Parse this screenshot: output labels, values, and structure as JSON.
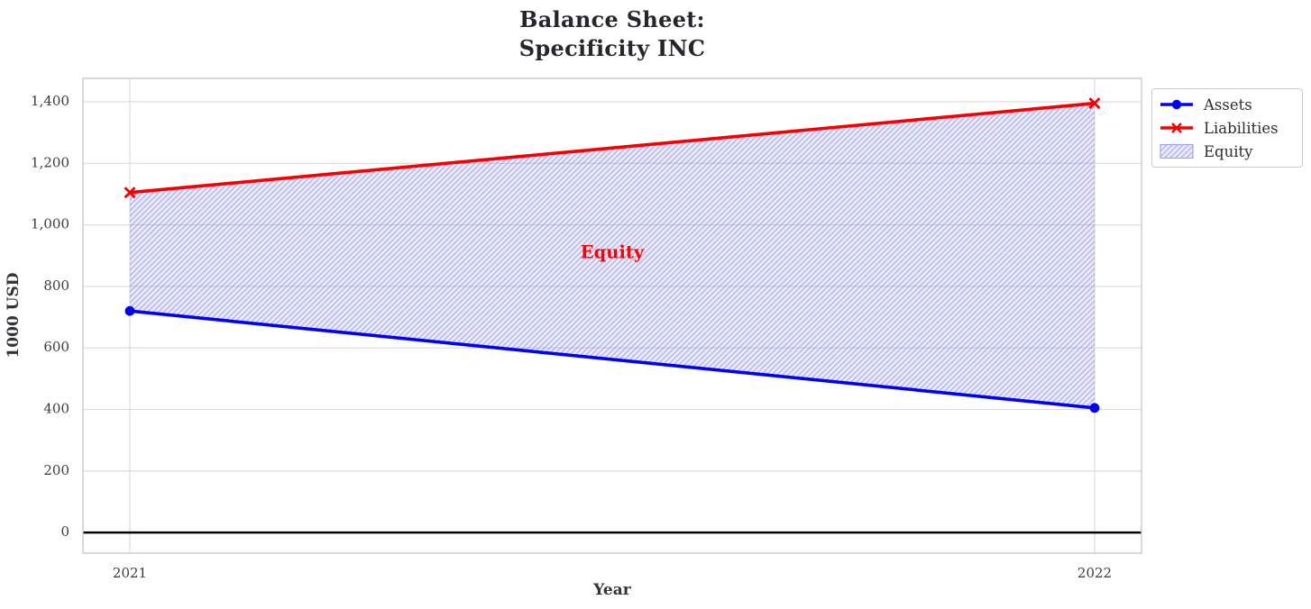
{
  "chart_data": {
    "type": "line",
    "title_lines": [
      "Balance Sheet:",
      "Specificity INC"
    ],
    "xlabel": "Year",
    "ylabel": "1000 USD",
    "x": [
      2021,
      2022
    ],
    "x_tick_labels": [
      "2021",
      "2022"
    ],
    "yticks": [
      0,
      200,
      400,
      600,
      800,
      1000,
      1200,
      1400
    ],
    "ytick_labels": [
      "0",
      "200",
      "400",
      "600",
      "800",
      "1,000",
      "1,200",
      "1,400"
    ],
    "ylim": [
      -67,
      1476
    ],
    "grid": true,
    "series": [
      {
        "name": "Assets",
        "values": [
          720,
          405
        ],
        "color": "#0202f2",
        "marker": "circle"
      },
      {
        "name": "Liabilities",
        "values": [
          1105,
          1395
        ],
        "color": "#f20202",
        "marker": "x"
      }
    ],
    "fill_between": {
      "name": "Equity",
      "lower_series": "Assets",
      "upper_series": "Liabilities",
      "fill_color": "#6666dd",
      "fill_opacity": "0.13",
      "hatch": "///",
      "hatch_color": "#8585e6",
      "hatch_opacity": "0.55",
      "swatch_border_color": "#a2a2ea"
    },
    "annotation": {
      "text": "Equity",
      "x": 2021.5,
      "y": 908,
      "color": "#ff0000"
    },
    "zero_line": {
      "y": 0,
      "color": "#000000"
    },
    "legend": {
      "location": "outside-upper-right",
      "entries": [
        "Assets",
        "Liabilities",
        "Equity"
      ]
    },
    "style": {
      "grid_color": "#d9d9d9",
      "spine_color": "#c9c9c9",
      "tick_label_color": "#3c3c3c"
    }
  }
}
